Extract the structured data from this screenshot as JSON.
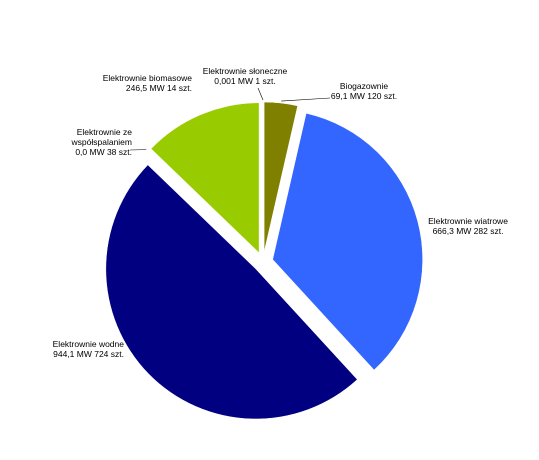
{
  "chart_data": {
    "type": "pie",
    "slices": [
      {
        "name": "Biogazownie",
        "value": 69.1,
        "detail": "69,1 MW 120 szt.",
        "color": "#808000"
      },
      {
        "name": "Elektrownie wiatrowe",
        "value": 666.3,
        "detail": "666,3 MW 282 szt.",
        "color": "#3366ff"
      },
      {
        "name": "Elektrownie wodne",
        "value": 944.1,
        "detail": "944,1 MW 724 szt.",
        "color": "#000080"
      },
      {
        "name": "Elektrownie ze współspalaniem",
        "value": 0.0,
        "detail": "0,0 MW 38 szt.",
        "color": "#993366"
      },
      {
        "name": "Elektrownie biomasowe",
        "value": 246.5,
        "detail": "246,5 MW 14 szt.",
        "color": "#99cc00"
      },
      {
        "name": "Elektrownie słoneczne",
        "value": 0.001,
        "detail": "0,001 MW 1 szt.",
        "color": "#993366"
      }
    ],
    "exploded": true,
    "legend": "none",
    "data_labels": "outside"
  },
  "labels": {
    "biogas": {
      "name": "Biogazownie",
      "detail": "69,1 MW 120 szt."
    },
    "wind": {
      "name": "Elektrownie wiatrowe",
      "detail": "666,3 MW 282 szt."
    },
    "hydro": {
      "name": "Elektrownie wodne",
      "detail": "944,1 MW 724 szt."
    },
    "cofiring": {
      "name1": "Elektrownie ze",
      "name2": "współspalaniem",
      "detail": "0,0 MW 38 szt."
    },
    "biomass": {
      "name": "Elektrownie biomasowe",
      "detail": "246,5 MW 14 szt."
    },
    "solar": {
      "name": "Elektrownie słoneczne",
      "detail": "0,001 MW 1 szt."
    }
  }
}
